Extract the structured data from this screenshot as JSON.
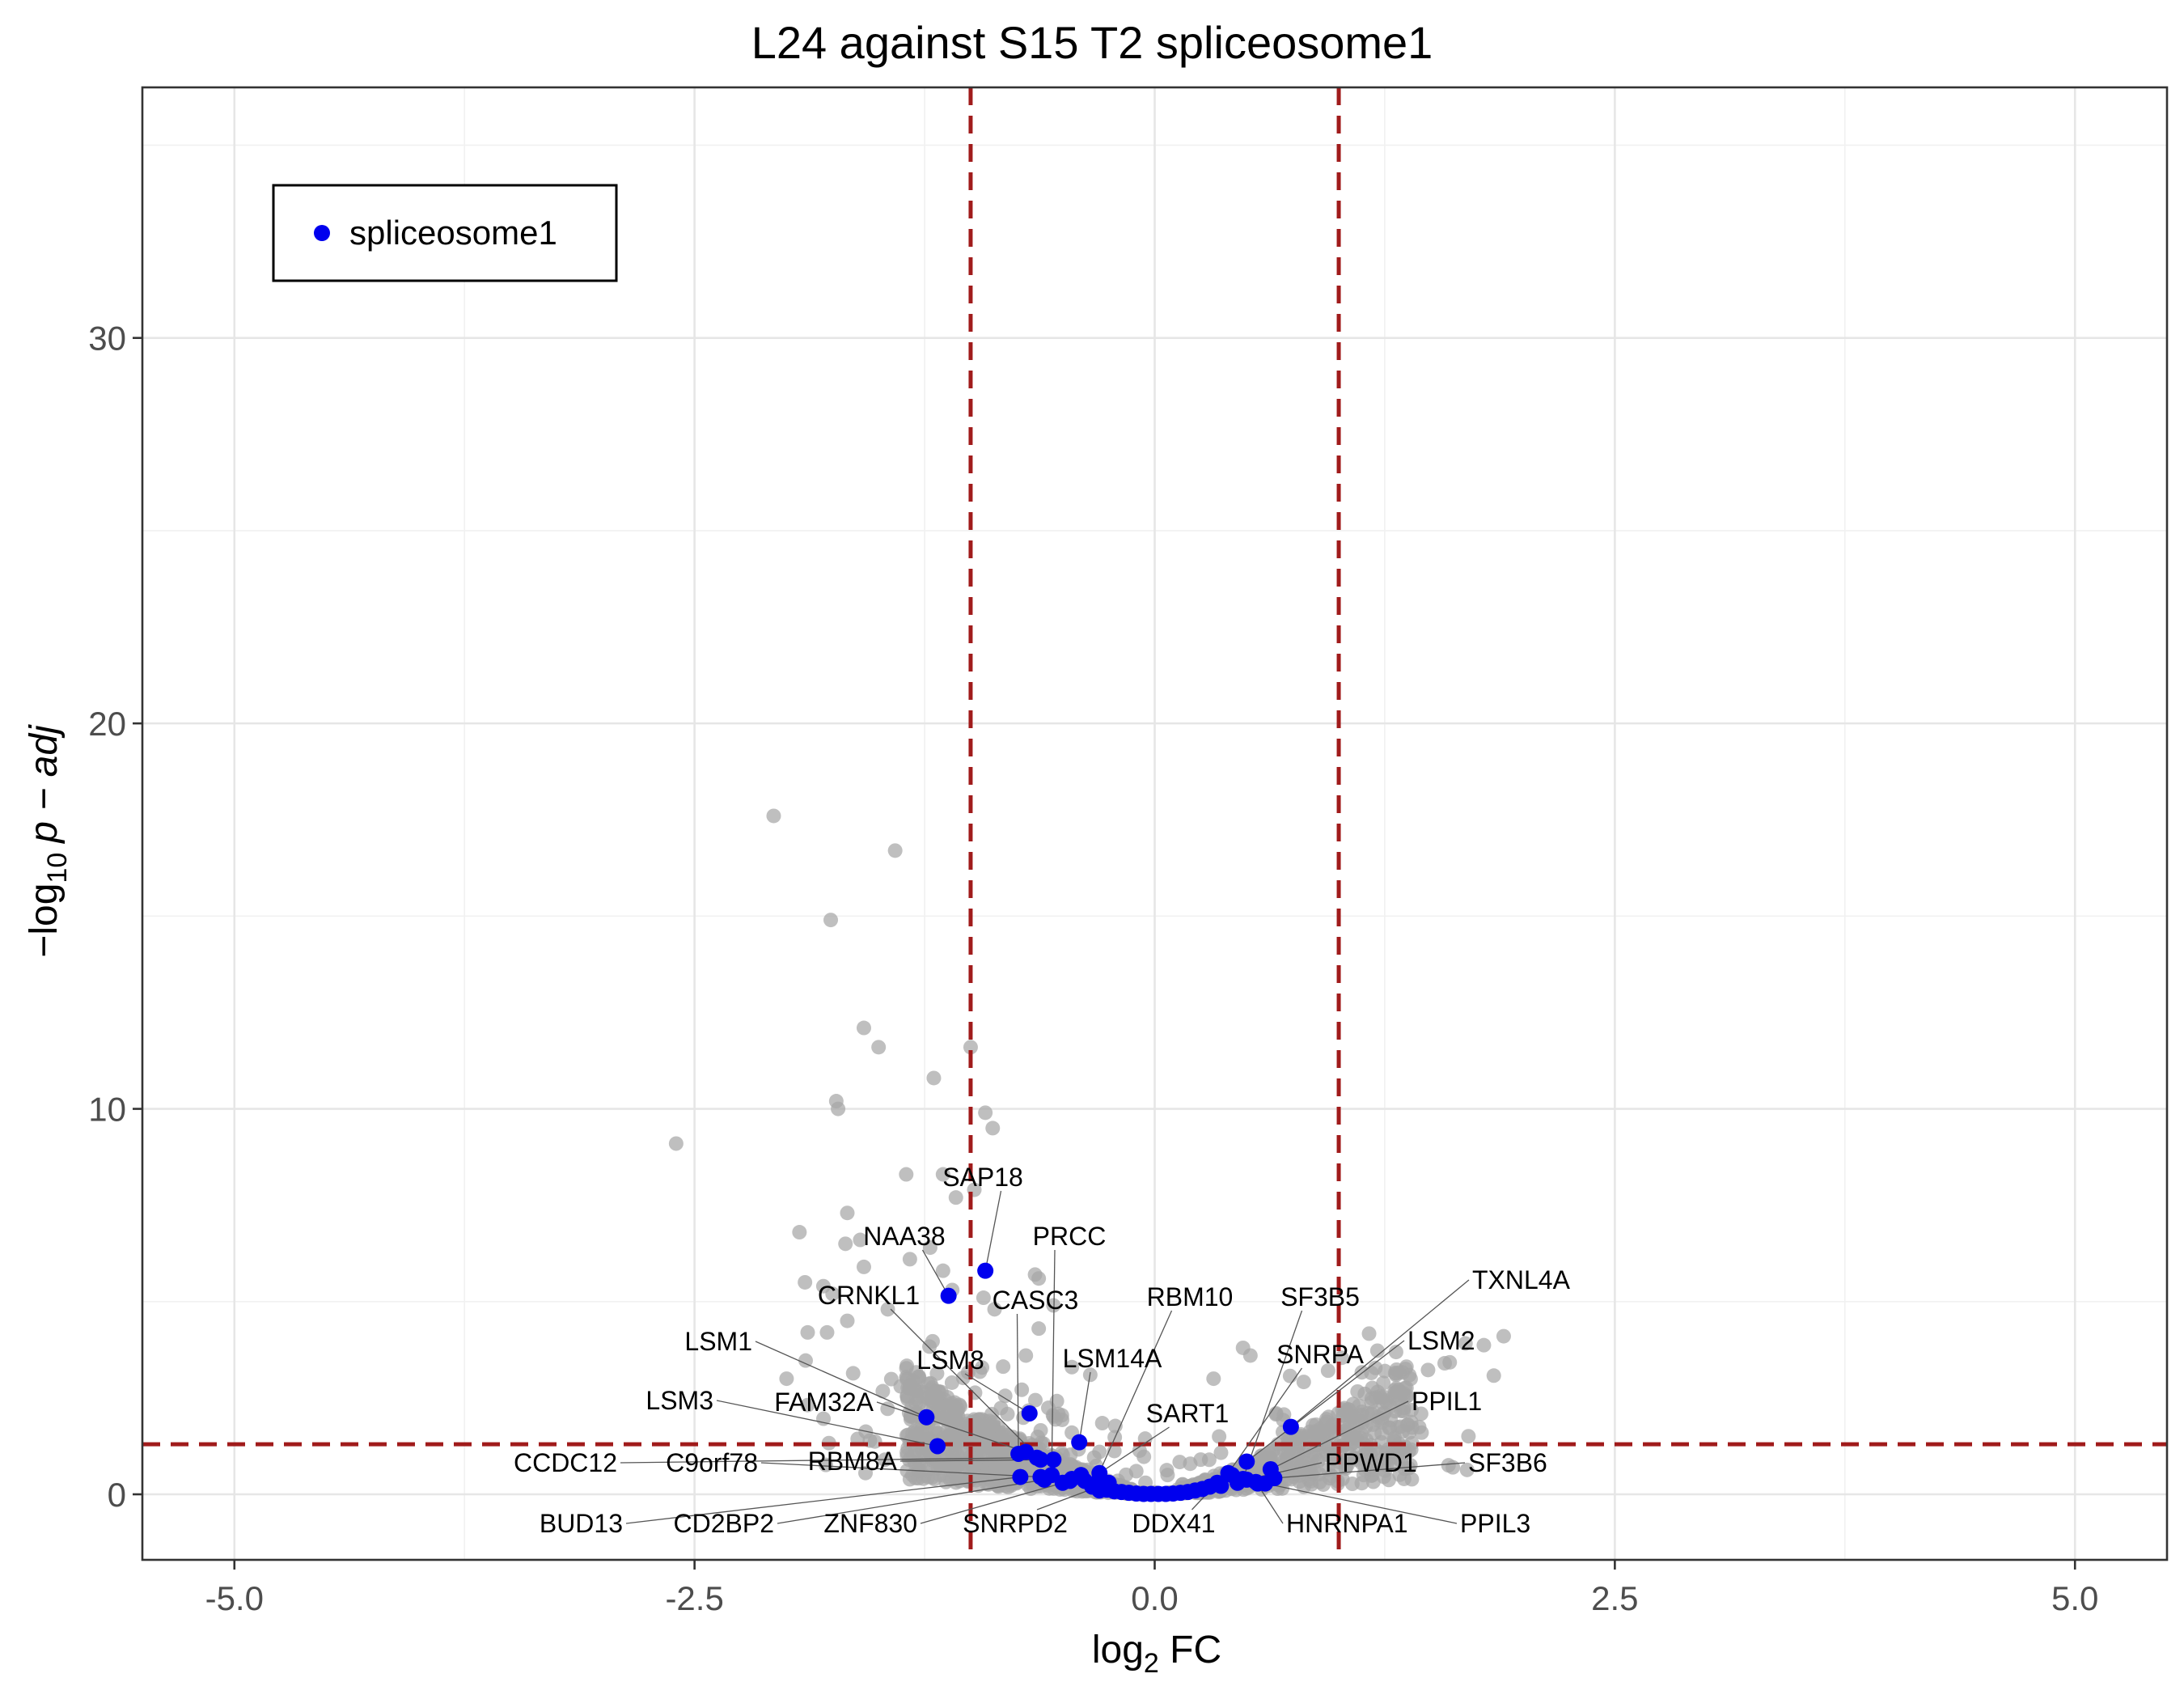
{
  "chart_data": {
    "type": "scatter",
    "title": "L24 against S15 T2 spliceosome1",
    "xlabel": {
      "main": "log",
      "sub": "2",
      "rest": " FC"
    },
    "ylabel": {
      "prefix": "−log",
      "sub": "10",
      "italic": "p − adj"
    },
    "xlim": [
      -5.5,
      5.5
    ],
    "ylim": [
      -1.7,
      36.5
    ],
    "x_ticks": [
      -5.0,
      -2.5,
      0.0,
      2.5,
      5.0
    ],
    "x_tick_labels": [
      "-5.0",
      "-2.5",
      "0.0",
      "2.5",
      "5.0"
    ],
    "y_ticks": [
      0,
      10,
      20,
      30
    ],
    "y_tick_labels": [
      "0",
      "10",
      "20",
      "30"
    ],
    "grid": true,
    "thresholds": {
      "x": [
        -1.0,
        1.0
      ],
      "y": 1.3,
      "color": "#a01b1b"
    },
    "legend": {
      "position": "top-left",
      "entries": [
        {
          "name": "spliceosome1",
          "color": "#0000ee"
        }
      ]
    },
    "colors": {
      "background_points": "#a6a6a6",
      "highlight": "#0000ee"
    },
    "series": [
      {
        "name": "background",
        "points": [
          [
            -2.6,
            9.1
          ],
          [
            -2.07,
            17.6
          ],
          [
            -1.76,
            14.9
          ],
          [
            -1.41,
            16.7
          ],
          [
            -1.58,
            12.1
          ],
          [
            -1.5,
            11.6
          ],
          [
            -1.0,
            11.6
          ],
          [
            -1.2,
            10.8
          ],
          [
            -1.73,
            10.2
          ],
          [
            -1.72,
            10.0
          ],
          [
            -0.92,
            9.9
          ],
          [
            -0.88,
            9.5
          ],
          [
            -1.35,
            8.3
          ],
          [
            -1.15,
            8.3
          ],
          [
            -1.08,
            7.7
          ],
          [
            -0.98,
            7.9
          ],
          [
            -1.67,
            7.3
          ],
          [
            -1.93,
            6.8
          ],
          [
            -1.68,
            6.5
          ],
          [
            -1.6,
            6.6
          ],
          [
            -1.22,
            6.4
          ],
          [
            -1.33,
            6.1
          ],
          [
            -1.58,
            5.9
          ],
          [
            -1.15,
            5.8
          ],
          [
            -0.65,
            5.7
          ],
          [
            -0.63,
            5.6
          ],
          [
            -1.9,
            5.5
          ],
          [
            -1.8,
            5.4
          ],
          [
            -1.75,
            5.2
          ],
          [
            -1.1,
            5.3
          ],
          [
            -0.93,
            5.1
          ],
          [
            -0.87,
            4.8
          ],
          [
            -0.55,
            4.9
          ],
          [
            -1.45,
            4.8
          ],
          [
            -1.67,
            4.5
          ],
          [
            -0.63,
            4.3
          ],
          [
            0.48,
            3.8
          ],
          [
            0.52,
            3.6
          ],
          [
            -0.7,
            3.6
          ],
          [
            -0.45,
            3.3
          ],
          [
            -0.35,
            3.1
          ],
          [
            0.32,
            3.0
          ],
          [
            -2.0,
            3.0
          ],
          [
            -1.38,
            2.8
          ],
          [
            1.45,
            1.6
          ],
          [
            1.3,
            1.4
          ],
          [
            1.62,
            0.7
          ],
          [
            1.1,
            0.9
          ],
          [
            0.9,
            1.7
          ],
          [
            0.66,
            2.1
          ],
          [
            -0.1,
            0.6
          ],
          [
            0.07,
            0.5
          ],
          [
            -0.05,
            0.3
          ],
          [
            0.0,
            0.05
          ],
          [
            0.15,
            0.25
          ],
          [
            -0.2,
            0.35
          ],
          [
            0.25,
            0.9
          ],
          [
            -0.3,
            1.1
          ],
          [
            0.35,
            1.5
          ],
          [
            -0.45,
            1.6
          ]
        ]
      },
      {
        "name": "spliceosome1",
        "points": [
          {
            "label": "SAP18",
            "x": -0.92,
            "y": 5.8
          },
          {
            "label": "NAA38",
            "x": -1.12,
            "y": 5.15
          },
          {
            "label": "PRCC",
            "x": -0.56,
            "y": 0.5
          },
          {
            "label": "CRNKL1",
            "x": -0.62,
            "y": 0.9
          },
          {
            "label": "CASC3",
            "x": -0.74,
            "y": 1.05
          },
          {
            "label": "RBM10",
            "x": -0.33,
            "y": 0.25
          },
          {
            "label": "SF3B5",
            "x": 0.48,
            "y": 0.4
          },
          {
            "label": "TXNL4A",
            "x": 0.74,
            "y": 1.75
          },
          {
            "label": "LSM1",
            "x": -1.24,
            "y": 2.0
          },
          {
            "label": "LSM8",
            "x": -0.68,
            "y": 2.1
          },
          {
            "label": "LSM14A",
            "x": -0.41,
            "y": 1.35
          },
          {
            "label": "SNRPA",
            "x": 0.4,
            "y": 0.55
          },
          {
            "label": "LSM2",
            "x": 0.5,
            "y": 0.85
          },
          {
            "label": "LSM3",
            "x": -1.18,
            "y": 1.25
          },
          {
            "label": "FAM32A",
            "x": -0.7,
            "y": 1.1
          },
          {
            "label": "SART1",
            "x": -0.3,
            "y": 0.55
          },
          {
            "label": "PPIL1",
            "x": 0.63,
            "y": 0.65
          },
          {
            "label": "CCDC12",
            "x": -0.64,
            "y": 0.95
          },
          {
            "label": "C9orf78",
            "x": -0.62,
            "y": 0.45
          },
          {
            "label": "RBM8A",
            "x": -0.55,
            "y": 0.9
          },
          {
            "label": "PPWD1",
            "x": 0.5,
            "y": 0.38
          },
          {
            "label": "SF3B6",
            "x": 0.65,
            "y": 0.42
          },
          {
            "label": "BUD13",
            "x": -0.73,
            "y": 0.45
          },
          {
            "label": "CD2BP2",
            "x": -0.6,
            "y": 0.38
          },
          {
            "label": "ZNF830",
            "x": -0.46,
            "y": 0.35
          },
          {
            "label": "SNRPD2",
            "x": -0.25,
            "y": 0.3
          },
          {
            "label": "DDX41",
            "x": 0.34,
            "y": 0.3
          },
          {
            "label": "HNRNPA1",
            "x": 0.55,
            "y": 0.32
          },
          {
            "label": "PPIL3",
            "x": 0.6,
            "y": 0.28
          },
          {
            "x": -0.45,
            "y": 0.4
          },
          {
            "x": -0.38,
            "y": 0.35
          },
          {
            "x": -0.34,
            "y": 0.2
          },
          {
            "x": -0.3,
            "y": 0.1
          },
          {
            "x": -0.26,
            "y": 0.12
          },
          {
            "x": -0.22,
            "y": 0.08
          },
          {
            "x": -0.18,
            "y": 0.06
          },
          {
            "x": -0.14,
            "y": 0.04
          },
          {
            "x": -0.1,
            "y": 0.02
          },
          {
            "x": -0.06,
            "y": 0.01
          },
          {
            "x": -0.02,
            "y": 0.01
          },
          {
            "x": 0.02,
            "y": 0.01
          },
          {
            "x": 0.06,
            "y": 0.01
          },
          {
            "x": 0.1,
            "y": 0.02
          },
          {
            "x": 0.14,
            "y": 0.04
          },
          {
            "x": 0.18,
            "y": 0.06
          },
          {
            "x": 0.22,
            "y": 0.1
          },
          {
            "x": 0.26,
            "y": 0.14
          },
          {
            "x": 0.3,
            "y": 0.2
          },
          {
            "x": 0.36,
            "y": 0.22
          },
          {
            "x": 0.42,
            "y": 0.5
          },
          {
            "x": 0.45,
            "y": 0.3
          },
          {
            "x": 0.56,
            "y": 0.28
          },
          {
            "x": -0.4,
            "y": 0.5
          },
          {
            "x": -0.5,
            "y": 0.3
          },
          {
            "x": -0.3,
            "y": 0.4
          }
        ]
      }
    ]
  }
}
